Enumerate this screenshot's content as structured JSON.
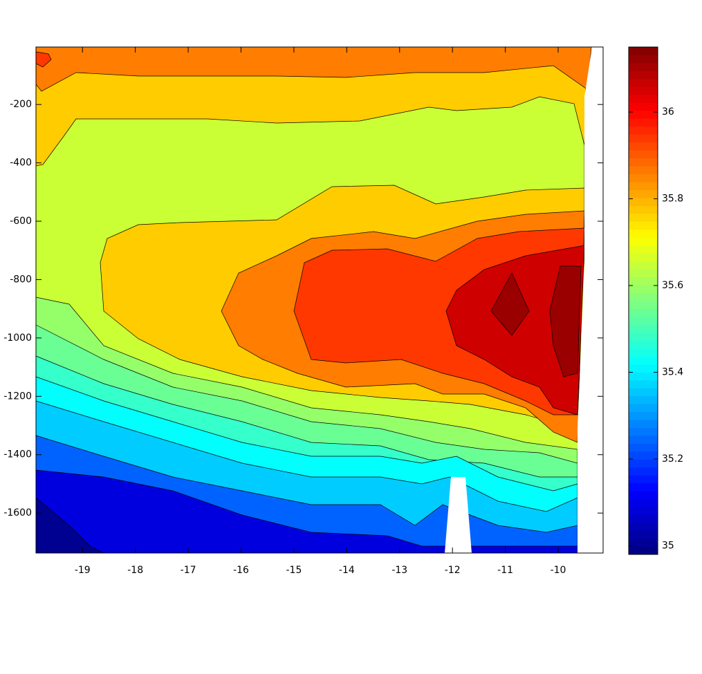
{
  "chart_data": {
    "type": "contour",
    "xlim": [
      -19.88,
      -9.15
    ],
    "xticks": [
      -19,
      -18,
      -17,
      -16,
      -15,
      -14,
      -13,
      -12,
      -11,
      -10
    ],
    "ylim": [
      -1737,
      -3
    ],
    "yticks": [
      -200,
      -400,
      -600,
      -800,
      -1000,
      -1200,
      -1400,
      -1600
    ],
    "clim": [
      34.98,
      36.15
    ],
    "cticks": [
      35,
      35.2,
      35.4,
      35.6,
      35.8,
      36
    ],
    "colormap": "jet",
    "levels": [
      35.0,
      35.09,
      35.24,
      35.36,
      35.42,
      35.48,
      35.54,
      35.59,
      35.65,
      35.77,
      35.86,
      35.94,
      36.06,
      36.12
    ]
  }
}
